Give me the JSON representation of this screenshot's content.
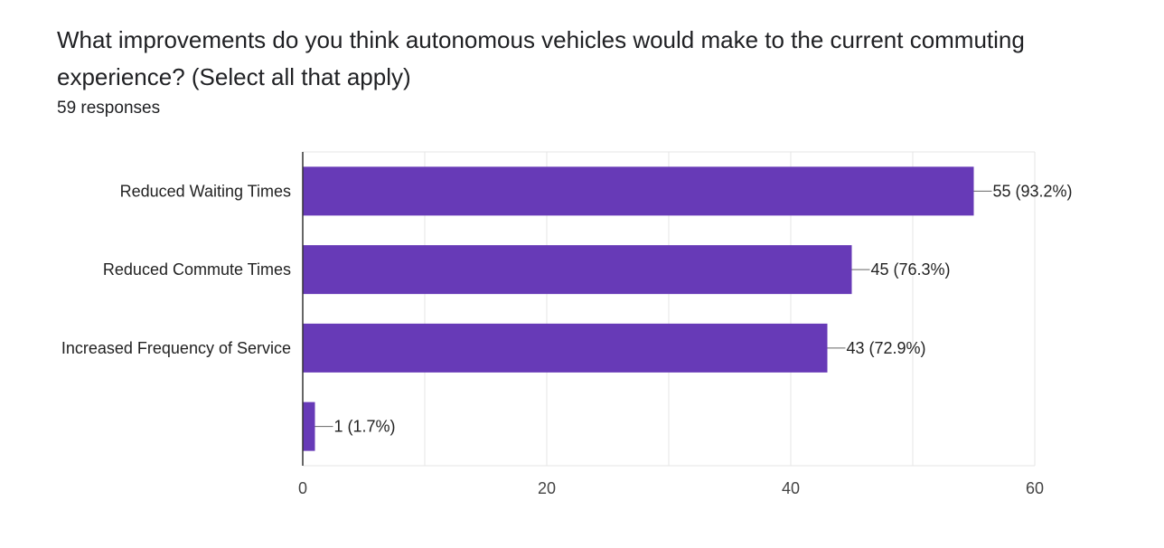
{
  "form": {
    "question": "What improvements do you think autonomous vehicles would make to the current commuting experience? (Select all that apply)",
    "responses": "59 responses"
  },
  "colors": {
    "bar": "#673ab7",
    "grid": "#e6e6e6",
    "axis": "#333333"
  },
  "chart_data": {
    "type": "bar",
    "orientation": "horizontal",
    "categories": [
      "Reduced Waiting Times",
      "Reduced Commute Times",
      "Increased Frequency of Service",
      ""
    ],
    "values": [
      55,
      45,
      43,
      1
    ],
    "data_labels": [
      "55 (93.2%)",
      "45 (76.3%)",
      "43 (72.9%)",
      "1 (1.7%)"
    ],
    "x_ticks": [
      0,
      20,
      40,
      60
    ],
    "xlim": [
      0,
      60
    ],
    "grid": true,
    "legend": "none"
  }
}
